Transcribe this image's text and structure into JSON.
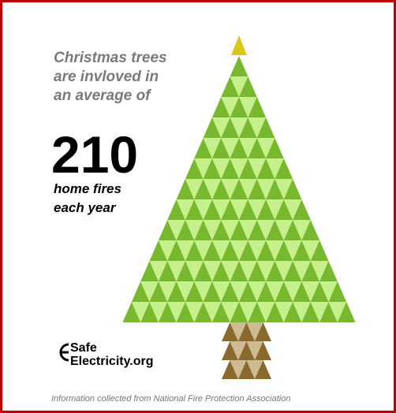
{
  "intro": {
    "lines": [
      "Christmas trees",
      "are invloved in",
      "an average of"
    ]
  },
  "headline": "210",
  "caption": {
    "lines": [
      "home fires",
      "each year"
    ]
  },
  "logo": {
    "line1": "Safe",
    "line2": "Electricity.org"
  },
  "footer": "Information collected from National Fire Protection Association"
}
